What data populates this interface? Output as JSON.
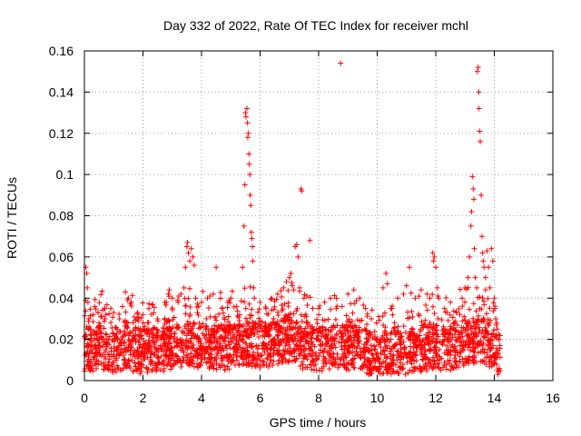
{
  "chart_data": {
    "type": "scatter",
    "title": "Day 332 of 2022, Rate Of TEC Index for receiver mchl",
    "xlabel": "GPS time / hours",
    "ylabel": "ROTI / TECUs",
    "xlim": [
      0,
      16
    ],
    "ylim": [
      0,
      0.16
    ],
    "x_ticks": [
      "0",
      "2",
      "4",
      "6",
      "8",
      "10",
      "12",
      "14",
      "16"
    ],
    "y_ticks": [
      "0",
      "0.02",
      "0.04",
      "0.06",
      "0.08",
      "0.1",
      "0.12",
      "0.14",
      "0.16"
    ],
    "grid": true,
    "marker": "+",
    "color": "#ff0000",
    "series": [
      {
        "name": "ROTI",
        "points": [
          [
            0.05,
            0.055
          ],
          [
            0.08,
            0.052
          ],
          [
            0.1,
            0.045
          ],
          [
            0.12,
            0.038
          ],
          [
            0.15,
            0.03
          ],
          [
            0.2,
            0.025
          ],
          [
            0.3,
            0.032
          ],
          [
            0.5,
            0.028
          ],
          [
            0.7,
            0.03
          ],
          [
            0.9,
            0.035
          ],
          [
            1.0,
            0.033
          ],
          [
            1.2,
            0.03
          ],
          [
            1.3,
            0.036
          ],
          [
            1.4,
            0.043
          ],
          [
            1.5,
            0.04
          ],
          [
            1.6,
            0.038
          ],
          [
            1.8,
            0.03
          ],
          [
            2.0,
            0.032
          ],
          [
            2.2,
            0.035
          ],
          [
            2.5,
            0.03
          ],
          [
            2.8,
            0.038
          ],
          [
            2.9,
            0.044
          ],
          [
            3.0,
            0.04
          ],
          [
            3.2,
            0.038
          ],
          [
            3.3,
            0.042
          ],
          [
            3.4,
            0.045
          ],
          [
            3.45,
            0.055
          ],
          [
            3.5,
            0.065
          ],
          [
            3.52,
            0.067
          ],
          [
            3.55,
            0.062
          ],
          [
            3.6,
            0.058
          ],
          [
            3.65,
            0.064
          ],
          [
            3.7,
            0.06
          ],
          [
            3.75,
            0.056
          ],
          [
            3.8,
            0.04
          ],
          [
            3.9,
            0.036
          ],
          [
            4.0,
            0.038
          ],
          [
            4.2,
            0.04
          ],
          [
            4.4,
            0.042
          ],
          [
            4.5,
            0.055
          ],
          [
            4.7,
            0.035
          ],
          [
            4.9,
            0.038
          ],
          [
            5.0,
            0.04
          ],
          [
            5.2,
            0.036
          ],
          [
            5.3,
            0.032
          ],
          [
            5.4,
            0.055
          ],
          [
            5.45,
            0.075
          ],
          [
            5.48,
            0.095
          ],
          [
            5.5,
            0.13
          ],
          [
            5.52,
            0.128
          ],
          [
            5.55,
            0.132
          ],
          [
            5.57,
            0.125
          ],
          [
            5.58,
            0.118
          ],
          [
            5.6,
            0.12
          ],
          [
            5.62,
            0.11
          ],
          [
            5.63,
            0.105
          ],
          [
            5.65,
            0.1
          ],
          [
            5.66,
            0.09
          ],
          [
            5.68,
            0.085
          ],
          [
            5.7,
            0.072
          ],
          [
            5.72,
            0.069
          ],
          [
            5.74,
            0.065
          ],
          [
            5.75,
            0.058
          ],
          [
            5.78,
            0.045
          ],
          [
            5.8,
            0.04
          ],
          [
            6.0,
            0.038
          ],
          [
            6.2,
            0.035
          ],
          [
            6.4,
            0.04
          ],
          [
            6.6,
            0.042
          ],
          [
            6.8,
            0.045
          ],
          [
            6.9,
            0.048
          ],
          [
            7.0,
            0.05
          ],
          [
            7.05,
            0.052
          ],
          [
            7.1,
            0.046
          ],
          [
            7.15,
            0.044
          ],
          [
            7.2,
            0.065
          ],
          [
            7.25,
            0.066
          ],
          [
            7.3,
            0.06
          ],
          [
            7.35,
            0.045
          ],
          [
            7.4,
            0.093
          ],
          [
            7.42,
            0.092
          ],
          [
            7.5,
            0.04
          ],
          [
            7.7,
            0.068
          ],
          [
            7.8,
            0.035
          ],
          [
            8.0,
            0.032
          ],
          [
            8.2,
            0.038
          ],
          [
            8.4,
            0.04
          ],
          [
            8.6,
            0.035
          ],
          [
            8.75,
            0.154
          ],
          [
            8.8,
            0.036
          ],
          [
            9.0,
            0.042
          ],
          [
            9.2,
            0.044
          ],
          [
            9.4,
            0.04
          ],
          [
            9.6,
            0.035
          ],
          [
            9.8,
            0.03
          ],
          [
            10.0,
            0.02
          ],
          [
            10.2,
            0.045
          ],
          [
            10.3,
            0.052
          ],
          [
            10.35,
            0.047
          ],
          [
            10.5,
            0.035
          ],
          [
            10.7,
            0.04
          ],
          [
            10.9,
            0.042
          ],
          [
            11.0,
            0.046
          ],
          [
            11.1,
            0.055
          ],
          [
            11.3,
            0.04
          ],
          [
            11.5,
            0.044
          ],
          [
            11.7,
            0.042
          ],
          [
            11.8,
            0.04
          ],
          [
            11.9,
            0.062
          ],
          [
            11.92,
            0.058
          ],
          [
            11.95,
            0.06
          ],
          [
            12.0,
            0.055
          ],
          [
            12.05,
            0.045
          ],
          [
            12.1,
            0.04
          ],
          [
            12.3,
            0.035
          ],
          [
            12.5,
            0.038
          ],
          [
            12.7,
            0.033
          ],
          [
            12.9,
            0.04
          ],
          [
            13.0,
            0.045
          ],
          [
            13.1,
            0.05
          ],
          [
            13.15,
            0.06
          ],
          [
            13.2,
            0.075
          ],
          [
            13.22,
            0.082
          ],
          [
            13.25,
            0.099
          ],
          [
            13.28,
            0.093
          ],
          [
            13.3,
            0.088
          ],
          [
            13.32,
            0.064
          ],
          [
            13.35,
            0.05
          ],
          [
            13.4,
            0.045
          ],
          [
            13.42,
            0.15
          ],
          [
            13.45,
            0.152
          ],
          [
            13.47,
            0.14
          ],
          [
            13.48,
            0.132
          ],
          [
            13.5,
            0.121
          ],
          [
            13.52,
            0.116
          ],
          [
            13.55,
            0.09
          ],
          [
            13.58,
            0.07
          ],
          [
            13.6,
            0.062
          ],
          [
            13.62,
            0.058
          ],
          [
            13.65,
            0.055
          ],
          [
            13.7,
            0.05
          ],
          [
            13.75,
            0.063
          ],
          [
            13.8,
            0.055
          ],
          [
            13.85,
            0.045
          ],
          [
            13.9,
            0.064
          ],
          [
            13.95,
            0.058
          ],
          [
            14.0,
            0.04
          ],
          [
            14.05,
            0.03
          ],
          [
            14.1,
            0.025
          ],
          [
            14.15,
            0.02
          ]
        ],
        "baseline": [
          [
            0.0,
            0.015
          ],
          [
            0.5,
            0.016
          ],
          [
            1.0,
            0.015
          ],
          [
            1.5,
            0.016
          ],
          [
            2.0,
            0.014
          ],
          [
            2.5,
            0.015
          ],
          [
            3.0,
            0.016
          ],
          [
            3.5,
            0.018
          ],
          [
            4.0,
            0.017
          ],
          [
            4.5,
            0.016
          ],
          [
            5.0,
            0.016
          ],
          [
            5.5,
            0.018
          ],
          [
            6.0,
            0.017
          ],
          [
            6.5,
            0.018
          ],
          [
            7.0,
            0.02
          ],
          [
            7.5,
            0.016
          ],
          [
            8.0,
            0.015
          ],
          [
            8.5,
            0.016
          ],
          [
            9.0,
            0.016
          ],
          [
            9.5,
            0.015
          ],
          [
            10.0,
            0.01
          ],
          [
            10.5,
            0.013
          ],
          [
            11.0,
            0.014
          ],
          [
            11.5,
            0.015
          ],
          [
            12.0,
            0.016
          ],
          [
            12.5,
            0.016
          ],
          [
            13.0,
            0.018
          ],
          [
            13.5,
            0.02
          ],
          [
            14.0,
            0.016
          ],
          [
            14.2,
            0.012
          ]
        ]
      }
    ]
  }
}
